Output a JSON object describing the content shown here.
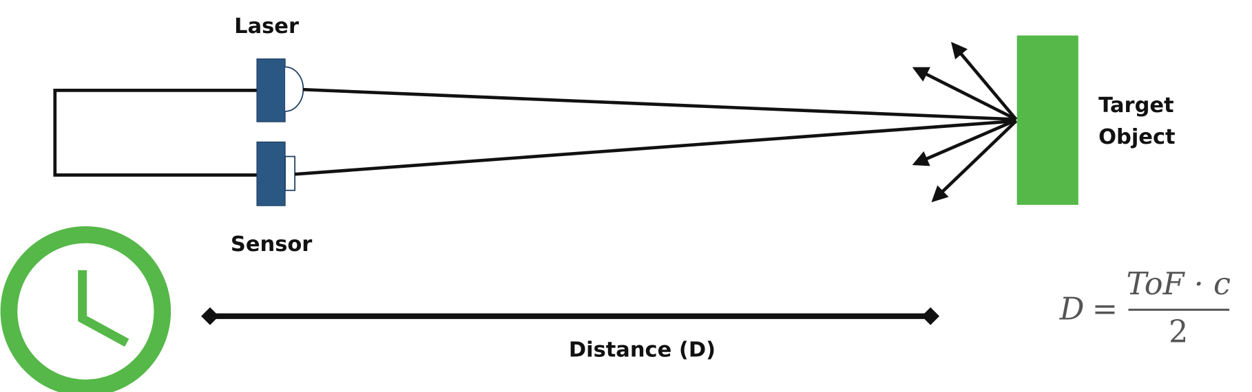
{
  "labels": {
    "laser": "Laser",
    "sensor": "Sensor",
    "target": [
      "Target",
      "Object"
    ],
    "distance": "Distance (D)"
  },
  "formula": {
    "lhs": "D",
    "operator": "=",
    "numerator": "ToF · c",
    "denominator": "2"
  }
}
